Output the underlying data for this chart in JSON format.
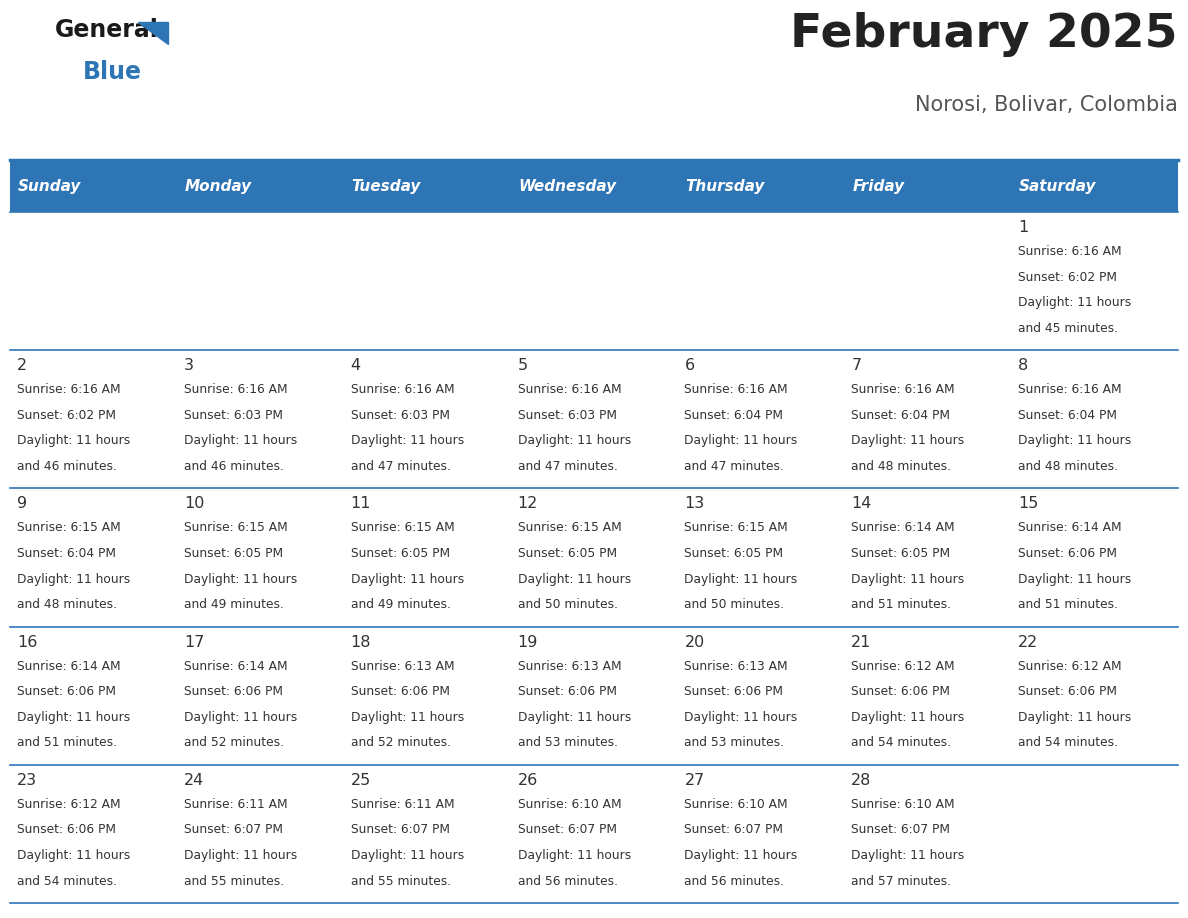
{
  "title": "February 2025",
  "subtitle": "Norosi, Bolivar, Colombia",
  "header_bg_color": "#2E75B6",
  "header_text_color": "#FFFFFF",
  "day_names": [
    "Sunday",
    "Monday",
    "Tuesday",
    "Wednesday",
    "Thursday",
    "Friday",
    "Saturday"
  ],
  "title_color": "#222222",
  "subtitle_color": "#555555",
  "cell_bg_color": "#FFFFFF",
  "day_num_color": "#333333",
  "info_color": "#333333",
  "border_color": "#2E75B6",
  "logo_general_color": "#1a1a1a",
  "logo_blue_color": "#2E75B6",
  "fig_width": 11.88,
  "fig_height": 9.18,
  "dpi": 100,
  "calendar_data": [
    [
      null,
      null,
      null,
      null,
      null,
      null,
      {
        "day": 1,
        "sunrise": "6:16 AM",
        "sunset": "6:02 PM",
        "daylight": "11 hours",
        "daylight2": "and 45 minutes."
      }
    ],
    [
      {
        "day": 2,
        "sunrise": "6:16 AM",
        "sunset": "6:02 PM",
        "daylight": "11 hours",
        "daylight2": "and 46 minutes."
      },
      {
        "day": 3,
        "sunrise": "6:16 AM",
        "sunset": "6:03 PM",
        "daylight": "11 hours",
        "daylight2": "and 46 minutes."
      },
      {
        "day": 4,
        "sunrise": "6:16 AM",
        "sunset": "6:03 PM",
        "daylight": "11 hours",
        "daylight2": "and 47 minutes."
      },
      {
        "day": 5,
        "sunrise": "6:16 AM",
        "sunset": "6:03 PM",
        "daylight": "11 hours",
        "daylight2": "and 47 minutes."
      },
      {
        "day": 6,
        "sunrise": "6:16 AM",
        "sunset": "6:04 PM",
        "daylight": "11 hours",
        "daylight2": "and 47 minutes."
      },
      {
        "day": 7,
        "sunrise": "6:16 AM",
        "sunset": "6:04 PM",
        "daylight": "11 hours",
        "daylight2": "and 48 minutes."
      },
      {
        "day": 8,
        "sunrise": "6:16 AM",
        "sunset": "6:04 PM",
        "daylight": "11 hours",
        "daylight2": "and 48 minutes."
      }
    ],
    [
      {
        "day": 9,
        "sunrise": "6:15 AM",
        "sunset": "6:04 PM",
        "daylight": "11 hours",
        "daylight2": "and 48 minutes."
      },
      {
        "day": 10,
        "sunrise": "6:15 AM",
        "sunset": "6:05 PM",
        "daylight": "11 hours",
        "daylight2": "and 49 minutes."
      },
      {
        "day": 11,
        "sunrise": "6:15 AM",
        "sunset": "6:05 PM",
        "daylight": "11 hours",
        "daylight2": "and 49 minutes."
      },
      {
        "day": 12,
        "sunrise": "6:15 AM",
        "sunset": "6:05 PM",
        "daylight": "11 hours",
        "daylight2": "and 50 minutes."
      },
      {
        "day": 13,
        "sunrise": "6:15 AM",
        "sunset": "6:05 PM",
        "daylight": "11 hours",
        "daylight2": "and 50 minutes."
      },
      {
        "day": 14,
        "sunrise": "6:14 AM",
        "sunset": "6:05 PM",
        "daylight": "11 hours",
        "daylight2": "and 51 minutes."
      },
      {
        "day": 15,
        "sunrise": "6:14 AM",
        "sunset": "6:06 PM",
        "daylight": "11 hours",
        "daylight2": "and 51 minutes."
      }
    ],
    [
      {
        "day": 16,
        "sunrise": "6:14 AM",
        "sunset": "6:06 PM",
        "daylight": "11 hours",
        "daylight2": "and 51 minutes."
      },
      {
        "day": 17,
        "sunrise": "6:14 AM",
        "sunset": "6:06 PM",
        "daylight": "11 hours",
        "daylight2": "and 52 minutes."
      },
      {
        "day": 18,
        "sunrise": "6:13 AM",
        "sunset": "6:06 PM",
        "daylight": "11 hours",
        "daylight2": "and 52 minutes."
      },
      {
        "day": 19,
        "sunrise": "6:13 AM",
        "sunset": "6:06 PM",
        "daylight": "11 hours",
        "daylight2": "and 53 minutes."
      },
      {
        "day": 20,
        "sunrise": "6:13 AM",
        "sunset": "6:06 PM",
        "daylight": "11 hours",
        "daylight2": "and 53 minutes."
      },
      {
        "day": 21,
        "sunrise": "6:12 AM",
        "sunset": "6:06 PM",
        "daylight": "11 hours",
        "daylight2": "and 54 minutes."
      },
      {
        "day": 22,
        "sunrise": "6:12 AM",
        "sunset": "6:06 PM",
        "daylight": "11 hours",
        "daylight2": "and 54 minutes."
      }
    ],
    [
      {
        "day": 23,
        "sunrise": "6:12 AM",
        "sunset": "6:06 PM",
        "daylight": "11 hours",
        "daylight2": "and 54 minutes."
      },
      {
        "day": 24,
        "sunrise": "6:11 AM",
        "sunset": "6:07 PM",
        "daylight": "11 hours",
        "daylight2": "and 55 minutes."
      },
      {
        "day": 25,
        "sunrise": "6:11 AM",
        "sunset": "6:07 PM",
        "daylight": "11 hours",
        "daylight2": "and 55 minutes."
      },
      {
        "day": 26,
        "sunrise": "6:10 AM",
        "sunset": "6:07 PM",
        "daylight": "11 hours",
        "daylight2": "and 56 minutes."
      },
      {
        "day": 27,
        "sunrise": "6:10 AM",
        "sunset": "6:07 PM",
        "daylight": "11 hours",
        "daylight2": "and 56 minutes."
      },
      {
        "day": 28,
        "sunrise": "6:10 AM",
        "sunset": "6:07 PM",
        "daylight": "11 hours",
        "daylight2": "and 57 minutes."
      },
      null
    ]
  ]
}
